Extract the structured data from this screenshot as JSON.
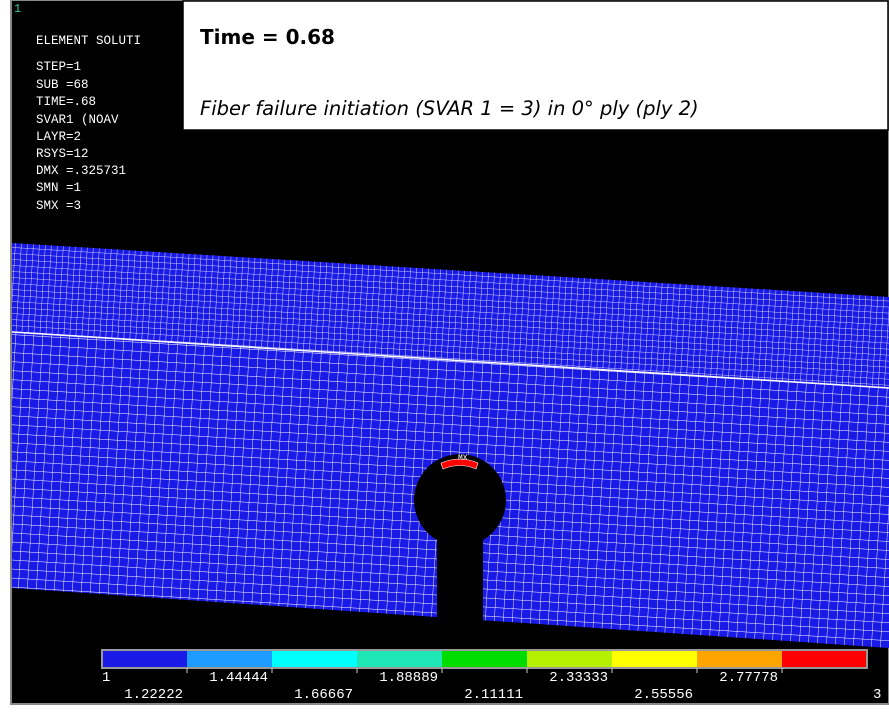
{
  "corner_label": "1",
  "info": {
    "lines": [
      "ELEMENT SOLUTI",
      "STEP=1",
      "SUB =68",
      "TIME=.68",
      "SVAR1     (NOAV",
      "LAYR=2",
      "RSYS=12",
      "DMX =.325731",
      "SMN =1",
      "SMX =3"
    ]
  },
  "annotation": {
    "title": "Time = 0.68",
    "caption": "Fiber failure initiation (SVAR 1 = 3) in 0° ply (ply 2)"
  },
  "plot": {
    "max_label": "MX"
  },
  "legend": {
    "colors": [
      "#1a1ae6",
      "#1e9bff",
      "#00ffff",
      "#1ee6b4",
      "#00dc00",
      "#b4f000",
      "#ffff00",
      "#ffa500",
      "#ff0000"
    ],
    "labels": [
      "1",
      "1.22222",
      "1.44444",
      "1.66667",
      "1.88889",
      "2.11111",
      "2.33333",
      "2.55556",
      "2.77778",
      "3"
    ]
  }
}
